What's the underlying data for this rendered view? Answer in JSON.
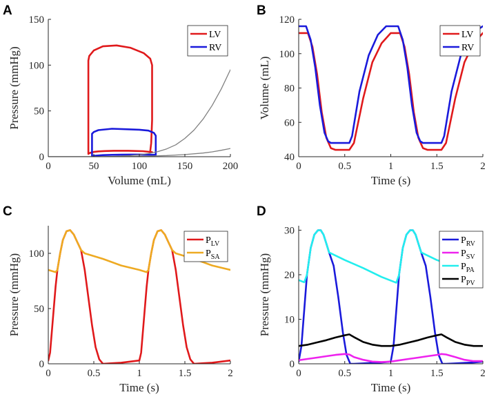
{
  "chart_data": [
    {
      "panel": "A",
      "type": "line",
      "xlabel": "Volume (mL)",
      "ylabel": "Pressure (mmHg)",
      "xlim": [
        0,
        200
      ],
      "ylim": [
        0,
        150
      ],
      "xticks": [
        0,
        50,
        100,
        150,
        200
      ],
      "yticks": [
        0,
        50,
        100,
        150
      ],
      "legend_location": "top-right",
      "series": [
        {
          "name": "LV",
          "color": "#e0191b",
          "legend": true,
          "x": [
            114,
            104,
            88,
            72,
            62,
            55,
            50,
            47,
            45,
            44,
            44,
            44,
            44,
            44,
            45,
            50,
            60,
            75,
            90,
            105,
            112,
            114,
            114,
            114,
            113,
            112,
            112,
            114,
            114
          ],
          "y": [
            5,
            6,
            6.5,
            6.5,
            6.2,
            5.8,
            5.2,
            4.5,
            3.8,
            3,
            20,
            60,
            100,
            105,
            110,
            116,
            120.5,
            121.5,
            119,
            113,
            107,
            100,
            80,
            40,
            15,
            6,
            5,
            5,
            5
          ]
        },
        {
          "name": "RV",
          "color": "#1a1adb",
          "legend": true,
          "x": [
            118,
            110,
            100,
            90,
            80,
            70,
            60,
            54,
            50,
            48,
            48,
            48,
            48,
            50,
            55,
            70,
            85,
            100,
            110,
            116,
            118,
            118,
            118,
            118
          ],
          "y": [
            2,
            2.2,
            2.3,
            2.3,
            2.2,
            2,
            1.7,
            1.3,
            1,
            0.7,
            10,
            22,
            25,
            27,
            29,
            30.5,
            30,
            29.5,
            28.5,
            26,
            23,
            15,
            5,
            2
          ]
        },
        {
          "name": "EDPVR LV",
          "color": "#808080",
          "legend": false,
          "x": [
            0,
            50,
            60,
            70,
            80,
            90,
            100,
            110,
            120,
            130,
            140,
            150,
            160,
            170,
            180,
            190,
            200
          ],
          "y": [
            0,
            0,
            0.1,
            0.3,
            0.6,
            1.2,
            2.1,
            3.5,
            5.5,
            8.5,
            13,
            20,
            29,
            41,
            56,
            74,
            95
          ]
        },
        {
          "name": "EDPVR RV",
          "color": "#808080",
          "legend": false,
          "x": [
            0,
            50,
            70,
            90,
            110,
            130,
            150,
            170,
            180,
            190,
            200
          ],
          "y": [
            0,
            0,
            0.1,
            0.3,
            0.7,
            1.3,
            2.3,
            4,
            5.3,
            7,
            9
          ]
        }
      ]
    },
    {
      "panel": "B",
      "type": "line",
      "xlabel": "Time (s)",
      "ylabel": "Volume (mL)",
      "xlim": [
        0,
        2
      ],
      "ylim": [
        40,
        120
      ],
      "xticks": [
        0,
        0.5,
        1,
        1.5,
        2
      ],
      "yticks": [
        40,
        60,
        80,
        100,
        120
      ],
      "legend_location": "top-right",
      "series": [
        {
          "name": "LV",
          "color": "#e0191b",
          "legend": true,
          "x": [
            0,
            0.1,
            0.15,
            0.2,
            0.25,
            0.3,
            0.35,
            0.4,
            0.55,
            0.6,
            0.7,
            0.8,
            0.9,
            1.0,
            1.05,
            1.1,
            1.15,
            1.2,
            1.25,
            1.3,
            1.35,
            1.4,
            1.55,
            1.6,
            1.7,
            1.8,
            1.9,
            2.0
          ],
          "y": [
            112,
            112,
            104,
            88,
            66,
            51,
            45,
            44,
            44,
            48,
            74,
            95,
            106,
            112,
            112,
            112,
            104,
            88,
            66,
            51,
            45,
            44,
            44,
            48,
            74,
            95,
            106,
            112
          ]
        },
        {
          "name": "RV",
          "color": "#1a1adb",
          "legend": true,
          "x": [
            0,
            0.08,
            0.13,
            0.18,
            0.23,
            0.28,
            0.32,
            0.35,
            0.55,
            0.58,
            0.66,
            0.76,
            0.86,
            0.95,
            1.05,
            1.08,
            1.13,
            1.18,
            1.23,
            1.28,
            1.32,
            1.35,
            1.55,
            1.58,
            1.66,
            1.76,
            1.86,
            2.0
          ],
          "y": [
            116,
            116,
            108,
            92,
            70,
            54,
            49,
            48,
            48,
            52,
            78,
            99,
            111,
            116,
            116,
            116,
            108,
            92,
            70,
            54,
            49,
            48,
            48,
            52,
            78,
            99,
            111,
            116
          ]
        }
      ]
    },
    {
      "panel": "C",
      "type": "line",
      "xlabel": "Time (s)",
      "ylabel": "Pressure (mmHg)",
      "xlim": [
        0,
        2
      ],
      "ylim": [
        0,
        125
      ],
      "xticks": [
        0,
        0.5,
        1,
        1.5,
        2
      ],
      "yticks": [
        0,
        50,
        100
      ],
      "legend_location": "top-right",
      "series": [
        {
          "name": "P",
          "sub": "LV",
          "color": "#e0191b",
          "legend": true,
          "x": [
            0,
            0.02,
            0.05,
            0.08,
            0.1,
            0.13,
            0.16,
            0.2,
            0.24,
            0.28,
            0.32,
            0.36,
            0.4,
            0.44,
            0.48,
            0.52,
            0.56,
            0.6,
            0.7,
            0.8,
            0.9,
            1.0,
            1.02,
            1.05,
            1.08,
            1.1,
            1.13,
            1.16,
            1.2,
            1.24,
            1.28,
            1.32,
            1.36,
            1.4,
            1.44,
            1.48,
            1.52,
            1.56,
            1.6,
            1.7,
            1.8,
            1.9,
            2.0
          ],
          "y": [
            3,
            10,
            40,
            70,
            85,
            100,
            112,
            120,
            121,
            117,
            110,
            103,
            85,
            60,
            35,
            15,
            4,
            0,
            0.5,
            1,
            2,
            3,
            10,
            40,
            70,
            85,
            100,
            112,
            120,
            121,
            117,
            110,
            103,
            85,
            60,
            35,
            15,
            4,
            0,
            0.5,
            1,
            2,
            3
          ]
        },
        {
          "name": "P",
          "sub": "SA",
          "color": "#eeaa22",
          "legend": true,
          "x": [
            0,
            0.08,
            0.1,
            0.13,
            0.16,
            0.2,
            0.24,
            0.28,
            0.32,
            0.36,
            0.4,
            0.6,
            0.8,
            1.0,
            1.08,
            1.1,
            1.13,
            1.16,
            1.2,
            1.24,
            1.28,
            1.32,
            1.36,
            1.4,
            1.6,
            1.8,
            2.0
          ],
          "y": [
            85,
            83,
            85,
            100,
            112,
            120,
            121,
            117,
            110,
            103,
            100,
            95,
            89,
            85,
            83,
            85,
            100,
            112,
            120,
            121,
            117,
            110,
            103,
            100,
            95,
            89,
            85
          ]
        }
      ]
    },
    {
      "panel": "D",
      "type": "line",
      "xlabel": "Time (s)",
      "ylabel": "Pressure (mmHg)",
      "xlim": [
        0,
        2
      ],
      "ylim": [
        0,
        31
      ],
      "xticks": [
        0,
        0.5,
        1,
        1.5,
        2
      ],
      "yticks": [
        0,
        10,
        20,
        30
      ],
      "legend_location": "top-right",
      "series": [
        {
          "name": "P",
          "sub": "RV",
          "color": "#1a1adb",
          "legend": true,
          "x": [
            0,
            0.03,
            0.06,
            0.09,
            0.13,
            0.17,
            0.21,
            0.24,
            0.27,
            0.3,
            0.33,
            0.38,
            0.43,
            0.48,
            0.52,
            0.56,
            0.6,
            0.7,
            0.8,
            0.9,
            1.0,
            1.03,
            1.06,
            1.09,
            1.13,
            1.17,
            1.21,
            1.24,
            1.27,
            1.3,
            1.33,
            1.38,
            1.43,
            1.48,
            1.52,
            1.56,
            1.6,
            1.7,
            1.8,
            1.9,
            2.0
          ],
          "y": [
            0.5,
            4,
            12,
            20,
            26,
            29,
            30,
            30,
            29,
            27,
            25,
            22,
            15,
            7,
            2,
            0,
            0,
            0.1,
            0.2,
            0.3,
            0.5,
            4,
            12,
            20,
            26,
            29,
            30,
            30,
            29,
            27,
            25,
            22,
            15,
            7,
            2,
            0,
            0,
            0.1,
            0.2,
            0.3,
            0.5
          ]
        },
        {
          "name": "P",
          "sub": "SV",
          "color": "#ee22ee",
          "legend": true,
          "x": [
            0,
            0.1,
            0.2,
            0.3,
            0.4,
            0.5,
            0.55,
            0.6,
            0.7,
            0.8,
            0.9,
            1.0,
            1.1,
            1.2,
            1.3,
            1.4,
            1.5,
            1.55,
            1.6,
            1.7,
            1.8,
            1.9,
            2.0
          ],
          "y": [
            0.8,
            1.1,
            1.4,
            1.7,
            2.0,
            2.2,
            2.1,
            1.5,
            0.9,
            0.5,
            0.4,
            0.5,
            0.8,
            1.1,
            1.4,
            1.7,
            2.0,
            2.2,
            2.1,
            1.5,
            0.9,
            0.6,
            0.6
          ]
        },
        {
          "name": "P",
          "sub": "PA",
          "color": "#22eeee",
          "legend": true,
          "x": [
            0,
            0.06,
            0.09,
            0.13,
            0.17,
            0.21,
            0.24,
            0.27,
            0.3,
            0.33,
            0.5,
            0.7,
            0.9,
            1.06,
            1.09,
            1.13,
            1.17,
            1.21,
            1.24,
            1.27,
            1.3,
            1.33,
            1.5,
            1.6
          ],
          "y": [
            18.8,
            18.3,
            20,
            26,
            29,
            30,
            30,
            29,
            27,
            25,
            23.3,
            21.5,
            19.5,
            18.2,
            20,
            26,
            29,
            30,
            30,
            29,
            27,
            25,
            23.3,
            22.6
          ]
        },
        {
          "name": "P",
          "sub": "PV",
          "color": "#000000",
          "legend": true,
          "x": [
            0,
            0.1,
            0.2,
            0.3,
            0.4,
            0.5,
            0.55,
            0.6,
            0.7,
            0.8,
            0.9,
            1.0,
            1.1,
            1.2,
            1.3,
            1.4,
            1.5,
            1.55,
            1.6,
            1.7,
            1.8,
            1.9,
            2.0
          ],
          "y": [
            4,
            4.3,
            4.8,
            5.3,
            5.9,
            6.4,
            6.6,
            6.0,
            4.9,
            4.3,
            4.0,
            4.0,
            4.3,
            4.8,
            5.3,
            5.9,
            6.4,
            6.6,
            6.0,
            4.9,
            4.3,
            4.0,
            4.0
          ]
        }
      ]
    }
  ]
}
